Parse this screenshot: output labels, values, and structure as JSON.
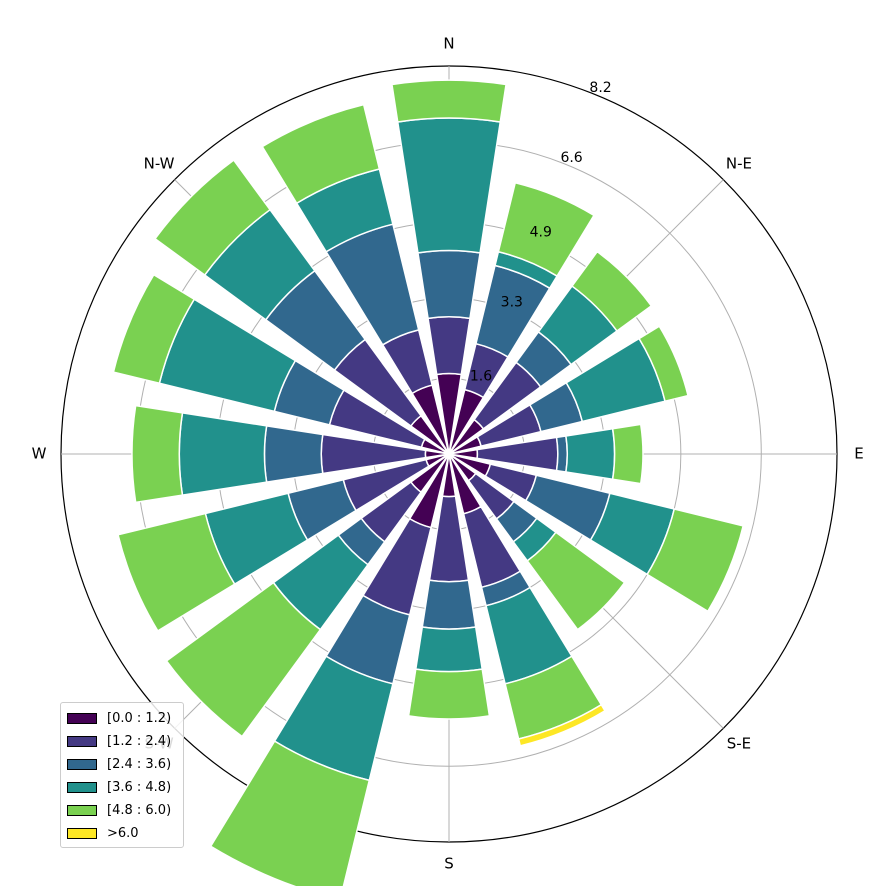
{
  "chart_data": {
    "type": "windrose",
    "directions": [
      "N",
      "NNE",
      "NE",
      "ENE",
      "E",
      "ESE",
      "SE",
      "SSE",
      "S",
      "SSW",
      "SW",
      "WSW",
      "W",
      "WNW",
      "NW",
      "NNW"
    ],
    "direction_labels": [
      "N",
      "N-E",
      "E",
      "S-E",
      "S",
      "S-W",
      "W",
      "N-W"
    ],
    "radial_ticks": [
      1.6,
      3.3,
      4.9,
      6.6,
      8.2
    ],
    "rlim": [
      0,
      8.2
    ],
    "grid": true,
    "legend_position": "bottom-left",
    "series": [
      {
        "name": "[0.0 : 1.2)",
        "color": "#440154",
        "values": [
          1.7,
          1.4,
          0.9,
          0.7,
          0.6,
          0.9,
          0.7,
          1.3,
          0.9,
          1.6,
          1.0,
          0.5,
          0.5,
          0.6,
          1.0,
          1.5
        ]
      },
      {
        "name": "[1.2 : 2.4)",
        "color": "#443983",
        "values": [
          1.2,
          1.0,
          1.5,
          1.3,
          1.7,
          1.0,
          1.0,
          1.6,
          1.8,
          1.9,
          1.3,
          1.8,
          2.2,
          2.0,
          2.0,
          1.2
        ]
      },
      {
        "name": "[2.4 : 3.6)",
        "color": "#31688e",
        "values": [
          1.4,
          1.7,
          0.8,
          0.9,
          0.2,
          1.6,
          0.6,
          0.4,
          1.0,
          1.5,
          0.6,
          1.2,
          1.2,
          1.2,
          1.8,
          2.3
        ]
      },
      {
        "name": "[3.6 : 4.8)",
        "color": "#21918c",
        "values": [
          2.8,
          0.3,
          1.2,
          1.8,
          1.0,
          1.4,
          0.5,
          1.7,
          0.9,
          2.1,
          1.7,
          1.8,
          1.8,
          2.5,
          1.6,
          1.2
        ]
      },
      {
        "name": "[4.8 : 6.0)",
        "color": "#7ad151",
        "values": [
          0.8,
          1.5,
          0.9,
          0.5,
          0.6,
          1.5,
          1.8,
          1.2,
          1.0,
          2.6,
          2.8,
          1.9,
          1.0,
          1.0,
          1.3,
          1.4
        ]
      },
      {
        "name": ">6.0",
        "color": "#fde725",
        "values": [
          0,
          0,
          0,
          0,
          0,
          0,
          0,
          0.15,
          0,
          0,
          0,
          0,
          0,
          0,
          0,
          0
        ]
      }
    ],
    "labels_shown": {
      "radial_ticks": [
        "1.6",
        "3.3",
        "4.9",
        "6.6",
        "8.2"
      ],
      "cardinal": [
        "N",
        "N-E",
        "E",
        "S-E",
        "S",
        "S-W",
        "W",
        "N-W"
      ]
    }
  },
  "legend": {
    "title": "",
    "items": [
      "[0.0 : 1.2)",
      "[1.2 : 2.4)",
      "[2.4 : 3.6)",
      "[3.6 : 4.8)",
      "[4.8 : 6.0)",
      ">6.0"
    ]
  }
}
